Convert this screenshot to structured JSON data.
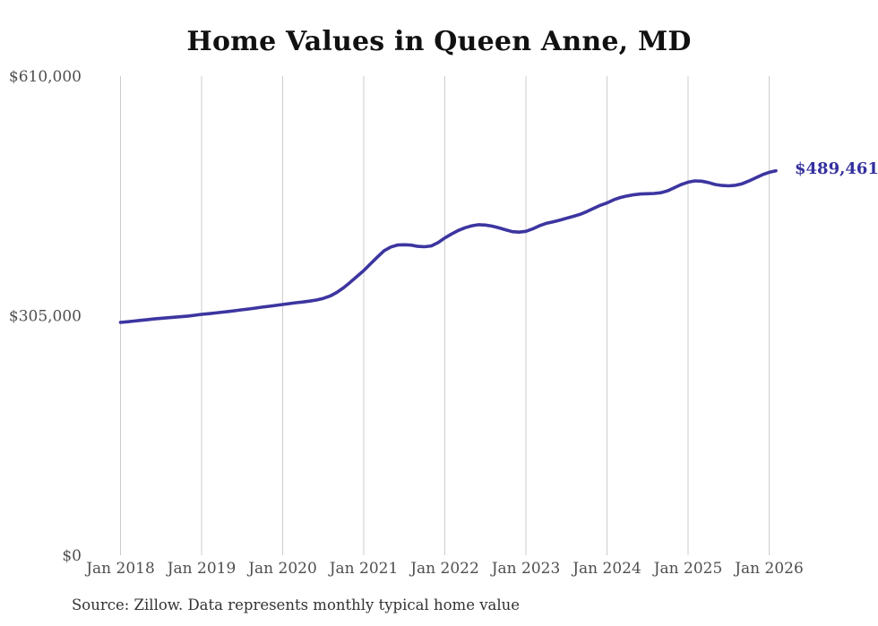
{
  "page": {
    "title": "Home Values in Queen Anne, MD",
    "source_note": "Source: Zillow. Data represents monthly typical home value"
  },
  "colors": {
    "background": "#ffffff",
    "line": "#3c35a0",
    "end_label_text": "#34309e",
    "grid": "#cccccc",
    "axis_text": "#4f4f4f",
    "title_text": "#111111",
    "source_text": "#333333"
  },
  "chart_data": {
    "type": "line",
    "title": "Home Values in Queen Anne, MD",
    "x_unit": "month",
    "x_start": "2018-01",
    "x_end": "2026-02",
    "x_tick_labels": [
      "Jan 2018",
      "Jan 2019",
      "Jan 2020",
      "Jan 2021",
      "Jan 2022",
      "Jan 2023",
      "Jan 2024",
      "Jan 2025",
      "Jan 2026"
    ],
    "y_ticks": [
      {
        "label": "$610,000",
        "value": 610000
      },
      {
        "label": "$305,000",
        "value": 305000
      },
      {
        "label": "$0",
        "value": 0
      }
    ],
    "ylim": [
      0,
      610000
    ],
    "grid": "vertical-only",
    "legend": "none",
    "end_label": "$489,461",
    "end_value": 489461,
    "values": [
      296400,
      297300,
      298200,
      299100,
      300000,
      300900,
      301700,
      302400,
      303100,
      303800,
      304600,
      305600,
      306700,
      307500,
      308400,
      309400,
      310400,
      311400,
      312500,
      313600,
      314700,
      315900,
      317000,
      318100,
      319200,
      320400,
      321500,
      322500,
      323600,
      325000,
      327000,
      330000,
      334500,
      340500,
      347500,
      355000,
      362500,
      371000,
      379500,
      387500,
      392500,
      395000,
      395300,
      394800,
      393300,
      392800,
      393800,
      398000,
      404000,
      409000,
      413500,
      417000,
      419500,
      420800,
      420400,
      419000,
      416800,
      414300,
      412000,
      411400,
      412400,
      415500,
      419500,
      422500,
      424500,
      426500,
      429000,
      431500,
      434000,
      437500,
      441500,
      445500,
      448600,
      452500,
      455500,
      457500,
      459000,
      460000,
      460300,
      460600,
      461500,
      464000,
      468000,
      472000,
      475000,
      476600,
      476300,
      474500,
      472000,
      470800,
      470300,
      471000,
      473000,
      476500,
      480500,
      484500,
      487500,
      489461
    ]
  }
}
